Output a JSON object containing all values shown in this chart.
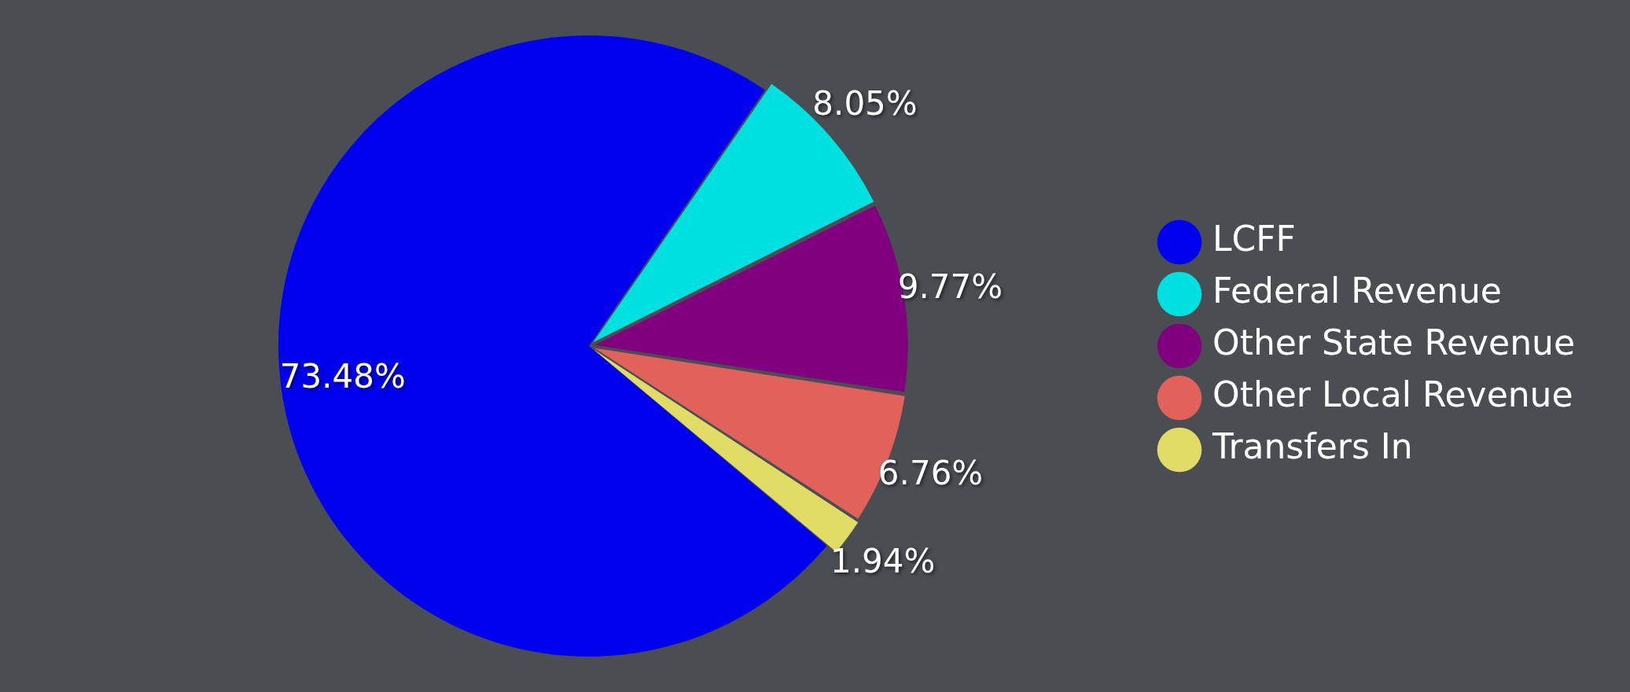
{
  "chart_data": {
    "type": "pie",
    "categories": [
      "LCFF",
      "Federal Revenue",
      "Other State Revenue",
      "Other Local Revenue",
      "Transfers In"
    ],
    "values": [
      73.48,
      8.05,
      9.77,
      6.76,
      1.94
    ],
    "value_labels": [
      "73.48%",
      "8.05%",
      "9.77%",
      "6.76%",
      "1.94%"
    ],
    "colors": [
      "#0000ee",
      "#00e0e0",
      "#800080",
      "#e0625a",
      "#e0dc66"
    ],
    "legend": "right"
  }
}
